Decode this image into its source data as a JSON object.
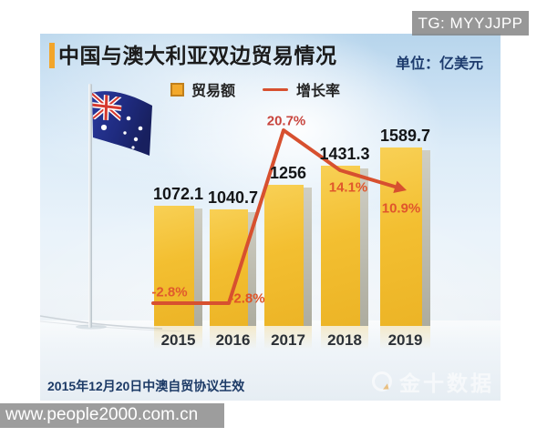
{
  "overlay": {
    "tg_badge": "TG: MYYJJPP",
    "site_url": "www.people2000.com.cn"
  },
  "header": {
    "title": "中国与澳大利亚双边贸易情况",
    "unit": "单位：亿美元"
  },
  "legend": {
    "bar_label": "贸易额",
    "line_label": "增长率"
  },
  "chart_data": {
    "type": "bar",
    "title": "中国与澳大利亚双边贸易情况",
    "unit": "亿美元",
    "categories": [
      "2015",
      "2016",
      "2017",
      "2018",
      "2019"
    ],
    "series": [
      {
        "name": "贸易额",
        "type": "bar",
        "color": "#f3bf31",
        "values": [
          1072.1,
          1040.7,
          1256,
          1431.3,
          1589.7
        ],
        "labels": [
          "1072.1",
          "1040.7",
          "1256",
          "1431.3",
          "1589.7"
        ]
      },
      {
        "name": "增长率",
        "type": "line",
        "color": "#d7502f",
        "values": [
          -2.8,
          -2.8,
          20.7,
          14.1,
          10.9
        ],
        "labels": [
          "-2.8%",
          "-2.8%",
          "20.7%",
          "14.1%",
          "10.9%"
        ]
      }
    ],
    "ylim": [
      0,
      1700
    ],
    "grid": false,
    "legend_position": "top"
  },
  "footnote": "2015年12月20日中澳自贸协议生效",
  "watermark": {
    "text": "金十数据"
  },
  "colors": {
    "bar": "#f3bf31",
    "bar_side": "#adac9f",
    "line": "#d7502f",
    "accent": "#f2a52b",
    "title_text": "#1b1b1b",
    "unit_text": "#1e3c6e",
    "footnote_text": "#1c3a66"
  }
}
